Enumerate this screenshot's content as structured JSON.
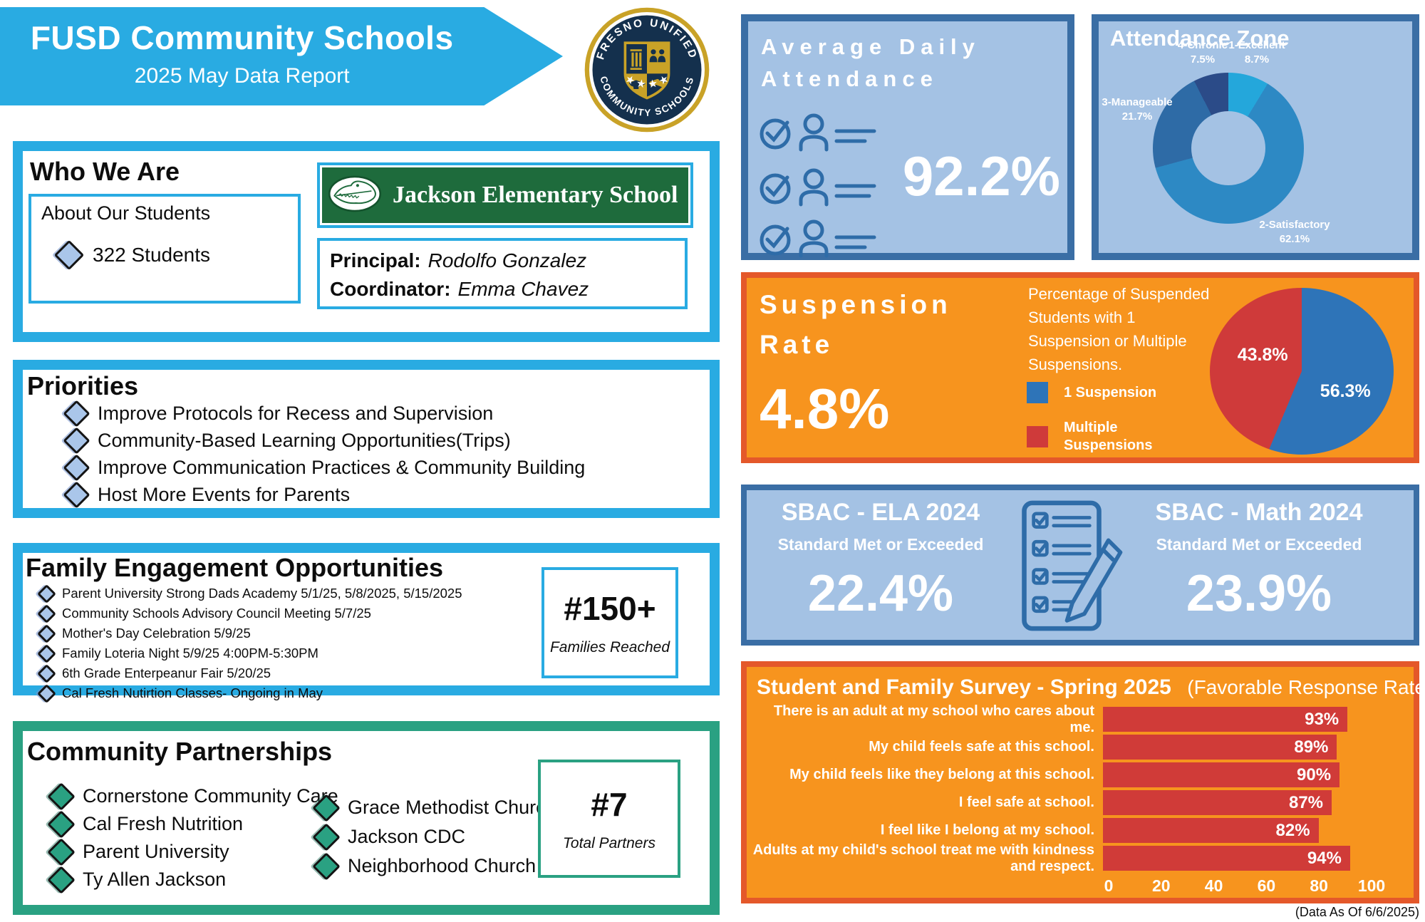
{
  "header": {
    "title": "FUSD Community Schools",
    "subtitle": "2025 May Data Report"
  },
  "seal": {
    "top_text": "FRESNO UNIFIED",
    "bottom_text": "COMMUNITY SCHOOLS",
    "navy": "#14304d",
    "gold": "#c9a227"
  },
  "who_we_are": {
    "title": "Who We Are",
    "about_label": "About Our Students",
    "students_count": "322 Students",
    "school_banner": "Jackson Elementary School",
    "principal_label": "Principal:",
    "principal_name": "Rodolfo Gonzalez",
    "coordinator_label": "Coordinator:",
    "coordinator_name": "Emma Chavez"
  },
  "priorities": {
    "title": "Priorities",
    "items": [
      "Improve Protocols for Recess and Supervision",
      "Community-Based Learning Opportunities(Trips)",
      "Improve Communication Practices & Community Building",
      "Host More Events for Parents"
    ]
  },
  "family_engagement": {
    "title": "Family Engagement Opportunities",
    "items": [
      "Parent University Strong Dads Academy 5/1/25, 5/8/2025, 5/15/2025",
      "Community Schools Advisory Council Meeting 5/7/25",
      "Mother's Day Celebration 5/9/25",
      "Family Loteria Night 5/9/25 4:00PM-5:30PM",
      "6th Grade Enterpeanur Fair 5/20/25",
      "Cal Fresh Nutirtion Classes- Ongoing in May"
    ],
    "stat_value": "#150+",
    "stat_label": "Families Reached"
  },
  "community_partnerships": {
    "title": "Community Partnerships",
    "col1": [
      "Cornerstone Community Care",
      "Cal Fresh Nutrition",
      "Parent University",
      "Ty Allen Jackson"
    ],
    "col2": [
      "Grace Methodist Church",
      "Jackson CDC",
      "Neighborhood Church"
    ],
    "stat_value": "#7",
    "stat_label": "Total Partners"
  },
  "attendance": {
    "title_line1": "Average Daily",
    "title_line2": "Attendance",
    "value": "92.2%"
  },
  "suspension": {
    "title_line1": "Suspension",
    "title_line2": "Rate",
    "value": "4.8%",
    "description": "Percentage of Suspended Students with 1 Suspension or Multiple Suspensions."
  },
  "sbac": {
    "ela_title": "SBAC - ELA 2024",
    "math_title": "SBAC - Math 2024",
    "subtitle": "Standard Met or Exceeded",
    "ela_value": "22.4%",
    "math_value": "23.9%"
  },
  "footnote": "(Data As Of 6/6/2025)",
  "colors": {
    "accent_blue": "#29abe2",
    "light_blue_fill": "#a4c2e4",
    "dark_blue_border": "#3a6ea5",
    "icon_blue": "#2e6ca8",
    "orange_fill": "#f7941e",
    "orange_border": "#e4582a",
    "bar_red": "#d03b38",
    "teal_green": "#2aa182",
    "banner_green": "#1e6b3c"
  },
  "chart_data": [
    {
      "id": "attendance_zone",
      "type": "pie",
      "variant": "donut",
      "title": "Attendance Zone",
      "segments": [
        {
          "label": "1-Excellent",
          "value": 8.7,
          "color": "#24a7db"
        },
        {
          "label": "2-Satisfactory",
          "value": 62.1,
          "color": "#2d89c4"
        },
        {
          "label": "3-Manageable",
          "value": 21.7,
          "color": "#2e6ba6"
        },
        {
          "label": "4-Chronic",
          "value": 7.5,
          "color": "#2b4b88"
        }
      ],
      "legend_position": "around-slices",
      "start_angle_deg": 0
    },
    {
      "id": "suspension_split",
      "type": "pie",
      "title": "Suspension Rate split",
      "segments": [
        {
          "label": "1 Suspension",
          "value": 56.3,
          "color": "#2e74b8"
        },
        {
          "label": "Multiple Suspensions",
          "value": 43.8,
          "color": "#cf3a3a"
        }
      ],
      "start_angle_deg": 0
    },
    {
      "id": "survey",
      "type": "bar",
      "orientation": "horizontal",
      "title": "Student and Family Survey - Spring 2025",
      "subtitle": "(Favorable Response Rate)",
      "categories": [
        "There is an adult at my school who cares about me.",
        "My child feels safe at this school.",
        "My child feels like they belong at this school.",
        "I feel safe at school.",
        "I feel like I belong at my school.",
        "Adults at my child's school treat me with kindness and respect."
      ],
      "values": [
        93,
        89,
        90,
        87,
        82,
        94
      ],
      "value_suffix": "%",
      "xlim": [
        0,
        100
      ],
      "xticks": [
        0,
        20,
        40,
        60,
        80,
        100
      ],
      "bar_color": "#d03b38",
      "grid": false
    }
  ]
}
